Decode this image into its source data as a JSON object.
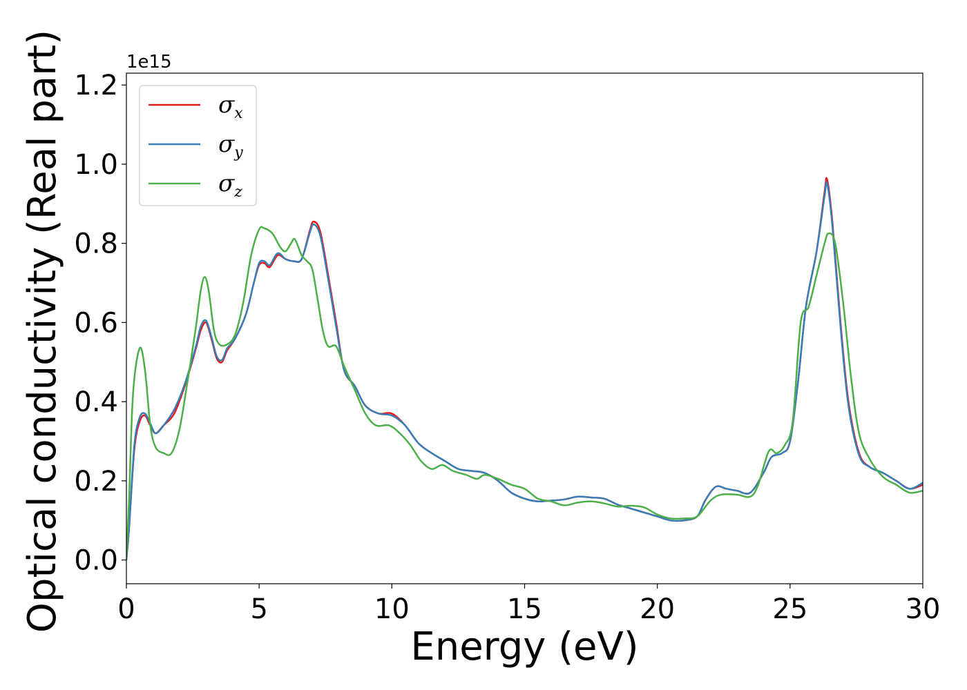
{
  "chart_data": {
    "type": "line",
    "title": "",
    "xlabel": "Energy (eV)",
    "ylabel": "Optical conductivity (Real part)",
    "y_offset_label": "1e15",
    "xlim": [
      0,
      30
    ],
    "ylim": [
      -0.06,
      1.23
    ],
    "xticks": [
      0,
      5,
      10,
      15,
      20,
      25,
      30
    ],
    "xtick_labels": [
      "0",
      "5",
      "10",
      "15",
      "20",
      "25",
      "30"
    ],
    "yticks": [
      0.0,
      0.2,
      0.4,
      0.6,
      0.8,
      1.0,
      1.2
    ],
    "ytick_labels": [
      "0.0",
      "0.2",
      "0.4",
      "0.6",
      "0.8",
      "1.0",
      "1.2"
    ],
    "grid": false,
    "legend_position": "top-left",
    "series": [
      {
        "name": "σ",
        "subscript": "x",
        "color": "#e41a1c",
        "points": [
          [
            0,
            0
          ],
          [
            0.1,
            0.08
          ],
          [
            0.3,
            0.28
          ],
          [
            0.5,
            0.35
          ],
          [
            0.7,
            0.365
          ],
          [
            0.9,
            0.34
          ],
          [
            1.1,
            0.32
          ],
          [
            1.4,
            0.34
          ],
          [
            1.8,
            0.37
          ],
          [
            2.2,
            0.44
          ],
          [
            2.6,
            0.53
          ],
          [
            2.8,
            0.58
          ],
          [
            3.0,
            0.6
          ],
          [
            3.2,
            0.56
          ],
          [
            3.4,
            0.51
          ],
          [
            3.6,
            0.5
          ],
          [
            3.8,
            0.53
          ],
          [
            4.1,
            0.56
          ],
          [
            4.5,
            0.62
          ],
          [
            4.8,
            0.7
          ],
          [
            5.0,
            0.745
          ],
          [
            5.2,
            0.75
          ],
          [
            5.4,
            0.74
          ],
          [
            5.7,
            0.77
          ],
          [
            6.0,
            0.76
          ],
          [
            6.3,
            0.755
          ],
          [
            6.6,
            0.76
          ],
          [
            6.9,
            0.83
          ],
          [
            7.05,
            0.855
          ],
          [
            7.3,
            0.83
          ],
          [
            7.6,
            0.72
          ],
          [
            7.9,
            0.6
          ],
          [
            8.2,
            0.48
          ],
          [
            8.6,
            0.44
          ],
          [
            9.0,
            0.39
          ],
          [
            9.5,
            0.37
          ],
          [
            10.0,
            0.37
          ],
          [
            10.5,
            0.34
          ],
          [
            11.0,
            0.295
          ],
          [
            11.5,
            0.27
          ],
          [
            12.0,
            0.25
          ],
          [
            12.5,
            0.23
          ],
          [
            13.0,
            0.225
          ],
          [
            13.5,
            0.22
          ],
          [
            14.0,
            0.2
          ],
          [
            14.5,
            0.17
          ],
          [
            15.0,
            0.155
          ],
          [
            15.5,
            0.148
          ],
          [
            16.0,
            0.15
          ],
          [
            16.5,
            0.153
          ],
          [
            17.0,
            0.16
          ],
          [
            17.5,
            0.158
          ],
          [
            18.0,
            0.155
          ],
          [
            18.5,
            0.14
          ],
          [
            19.0,
            0.13
          ],
          [
            19.5,
            0.12
          ],
          [
            20.0,
            0.11
          ],
          [
            20.5,
            0.1
          ],
          [
            21.0,
            0.1
          ],
          [
            21.5,
            0.11
          ],
          [
            21.8,
            0.15
          ],
          [
            22.2,
            0.185
          ],
          [
            22.6,
            0.18
          ],
          [
            23.0,
            0.175
          ],
          [
            23.5,
            0.17
          ],
          [
            24.0,
            0.22
          ],
          [
            24.3,
            0.26
          ],
          [
            24.7,
            0.27
          ],
          [
            25.0,
            0.3
          ],
          [
            25.3,
            0.45
          ],
          [
            25.6,
            0.64
          ],
          [
            26.0,
            0.78
          ],
          [
            26.3,
            0.93
          ],
          [
            26.4,
            0.96
          ],
          [
            26.6,
            0.85
          ],
          [
            26.9,
            0.6
          ],
          [
            27.2,
            0.4
          ],
          [
            27.6,
            0.27
          ],
          [
            28.0,
            0.235
          ],
          [
            28.5,
            0.22
          ],
          [
            29.0,
            0.2
          ],
          [
            29.5,
            0.18
          ],
          [
            30.0,
            0.19
          ]
        ]
      },
      {
        "name": "σ",
        "subscript": "y",
        "color": "#377eb8",
        "points": [
          [
            0,
            0
          ],
          [
            0.1,
            0.08
          ],
          [
            0.3,
            0.29
          ],
          [
            0.5,
            0.36
          ],
          [
            0.7,
            0.37
          ],
          [
            0.9,
            0.345
          ],
          [
            1.1,
            0.32
          ],
          [
            1.4,
            0.34
          ],
          [
            1.8,
            0.38
          ],
          [
            2.2,
            0.445
          ],
          [
            2.6,
            0.535
          ],
          [
            2.8,
            0.59
          ],
          [
            3.0,
            0.605
          ],
          [
            3.2,
            0.565
          ],
          [
            3.4,
            0.515
          ],
          [
            3.6,
            0.505
          ],
          [
            3.8,
            0.535
          ],
          [
            4.1,
            0.56
          ],
          [
            4.5,
            0.62
          ],
          [
            4.8,
            0.7
          ],
          [
            5.0,
            0.75
          ],
          [
            5.2,
            0.755
          ],
          [
            5.4,
            0.745
          ],
          [
            5.7,
            0.775
          ],
          [
            6.0,
            0.76
          ],
          [
            6.3,
            0.755
          ],
          [
            6.6,
            0.76
          ],
          [
            6.9,
            0.825
          ],
          [
            7.05,
            0.848
          ],
          [
            7.3,
            0.82
          ],
          [
            7.6,
            0.71
          ],
          [
            7.9,
            0.59
          ],
          [
            8.2,
            0.48
          ],
          [
            8.6,
            0.44
          ],
          [
            9.0,
            0.39
          ],
          [
            9.5,
            0.37
          ],
          [
            10.0,
            0.365
          ],
          [
            10.5,
            0.34
          ],
          [
            11.0,
            0.295
          ],
          [
            11.5,
            0.27
          ],
          [
            12.0,
            0.25
          ],
          [
            12.5,
            0.23
          ],
          [
            13.0,
            0.225
          ],
          [
            13.5,
            0.22
          ],
          [
            14.0,
            0.2
          ],
          [
            14.5,
            0.17
          ],
          [
            15.0,
            0.155
          ],
          [
            15.5,
            0.148
          ],
          [
            16.0,
            0.15
          ],
          [
            16.5,
            0.153
          ],
          [
            17.0,
            0.16
          ],
          [
            17.5,
            0.158
          ],
          [
            18.0,
            0.155
          ],
          [
            18.5,
            0.14
          ],
          [
            19.0,
            0.13
          ],
          [
            19.5,
            0.12
          ],
          [
            20.0,
            0.11
          ],
          [
            20.5,
            0.1
          ],
          [
            21.0,
            0.1
          ],
          [
            21.5,
            0.11
          ],
          [
            21.8,
            0.15
          ],
          [
            22.2,
            0.185
          ],
          [
            22.6,
            0.18
          ],
          [
            23.0,
            0.175
          ],
          [
            23.5,
            0.17
          ],
          [
            24.0,
            0.22
          ],
          [
            24.3,
            0.26
          ],
          [
            24.7,
            0.27
          ],
          [
            25.0,
            0.3
          ],
          [
            25.3,
            0.45
          ],
          [
            25.6,
            0.64
          ],
          [
            26.0,
            0.78
          ],
          [
            26.3,
            0.92
          ],
          [
            26.4,
            0.95
          ],
          [
            26.6,
            0.84
          ],
          [
            26.9,
            0.59
          ],
          [
            27.2,
            0.39
          ],
          [
            27.6,
            0.265
          ],
          [
            28.0,
            0.235
          ],
          [
            28.5,
            0.22
          ],
          [
            29.0,
            0.2
          ],
          [
            29.5,
            0.18
          ],
          [
            30.0,
            0.195
          ]
        ]
      },
      {
        "name": "σ",
        "subscript": "z",
        "color": "#4daf4a",
        "points": [
          [
            0,
            0
          ],
          [
            0.1,
            0.15
          ],
          [
            0.25,
            0.42
          ],
          [
            0.5,
            0.535
          ],
          [
            0.7,
            0.48
          ],
          [
            0.9,
            0.34
          ],
          [
            1.1,
            0.285
          ],
          [
            1.4,
            0.27
          ],
          [
            1.7,
            0.27
          ],
          [
            2.0,
            0.33
          ],
          [
            2.3,
            0.45
          ],
          [
            2.6,
            0.58
          ],
          [
            2.8,
            0.68
          ],
          [
            2.95,
            0.715
          ],
          [
            3.1,
            0.68
          ],
          [
            3.3,
            0.58
          ],
          [
            3.5,
            0.545
          ],
          [
            3.8,
            0.545
          ],
          [
            4.1,
            0.57
          ],
          [
            4.4,
            0.65
          ],
          [
            4.7,
            0.77
          ],
          [
            5.0,
            0.835
          ],
          [
            5.2,
            0.838
          ],
          [
            5.5,
            0.825
          ],
          [
            5.8,
            0.79
          ],
          [
            6.0,
            0.78
          ],
          [
            6.2,
            0.8
          ],
          [
            6.35,
            0.81
          ],
          [
            6.6,
            0.77
          ],
          [
            6.8,
            0.755
          ],
          [
            7.0,
            0.735
          ],
          [
            7.2,
            0.66
          ],
          [
            7.4,
            0.58
          ],
          [
            7.6,
            0.54
          ],
          [
            7.9,
            0.54
          ],
          [
            8.2,
            0.49
          ],
          [
            8.6,
            0.43
          ],
          [
            9.0,
            0.37
          ],
          [
            9.4,
            0.34
          ],
          [
            9.9,
            0.34
          ],
          [
            10.3,
            0.32
          ],
          [
            10.7,
            0.29
          ],
          [
            11.1,
            0.25
          ],
          [
            11.5,
            0.23
          ],
          [
            11.9,
            0.24
          ],
          [
            12.3,
            0.225
          ],
          [
            12.8,
            0.215
          ],
          [
            13.2,
            0.205
          ],
          [
            13.5,
            0.215
          ],
          [
            14.0,
            0.205
          ],
          [
            14.5,
            0.19
          ],
          [
            15.0,
            0.18
          ],
          [
            15.5,
            0.155
          ],
          [
            16.0,
            0.148
          ],
          [
            16.5,
            0.138
          ],
          [
            17.0,
            0.145
          ],
          [
            17.5,
            0.148
          ],
          [
            18.0,
            0.143
          ],
          [
            18.5,
            0.135
          ],
          [
            19.0,
            0.137
          ],
          [
            19.5,
            0.133
          ],
          [
            20.0,
            0.115
          ],
          [
            20.5,
            0.105
          ],
          [
            21.0,
            0.105
          ],
          [
            21.5,
            0.11
          ],
          [
            22.0,
            0.15
          ],
          [
            22.4,
            0.165
          ],
          [
            23.0,
            0.165
          ],
          [
            23.5,
            0.16
          ],
          [
            23.8,
            0.19
          ],
          [
            24.2,
            0.275
          ],
          [
            24.5,
            0.27
          ],
          [
            24.8,
            0.29
          ],
          [
            25.1,
            0.35
          ],
          [
            25.4,
            0.6
          ],
          [
            25.7,
            0.64
          ],
          [
            26.0,
            0.72
          ],
          [
            26.3,
            0.8
          ],
          [
            26.45,
            0.825
          ],
          [
            26.7,
            0.8
          ],
          [
            27.0,
            0.65
          ],
          [
            27.3,
            0.46
          ],
          [
            27.6,
            0.32
          ],
          [
            28.0,
            0.255
          ],
          [
            28.5,
            0.21
          ],
          [
            29.0,
            0.19
          ],
          [
            29.5,
            0.17
          ],
          [
            30.0,
            0.175
          ]
        ]
      }
    ]
  }
}
